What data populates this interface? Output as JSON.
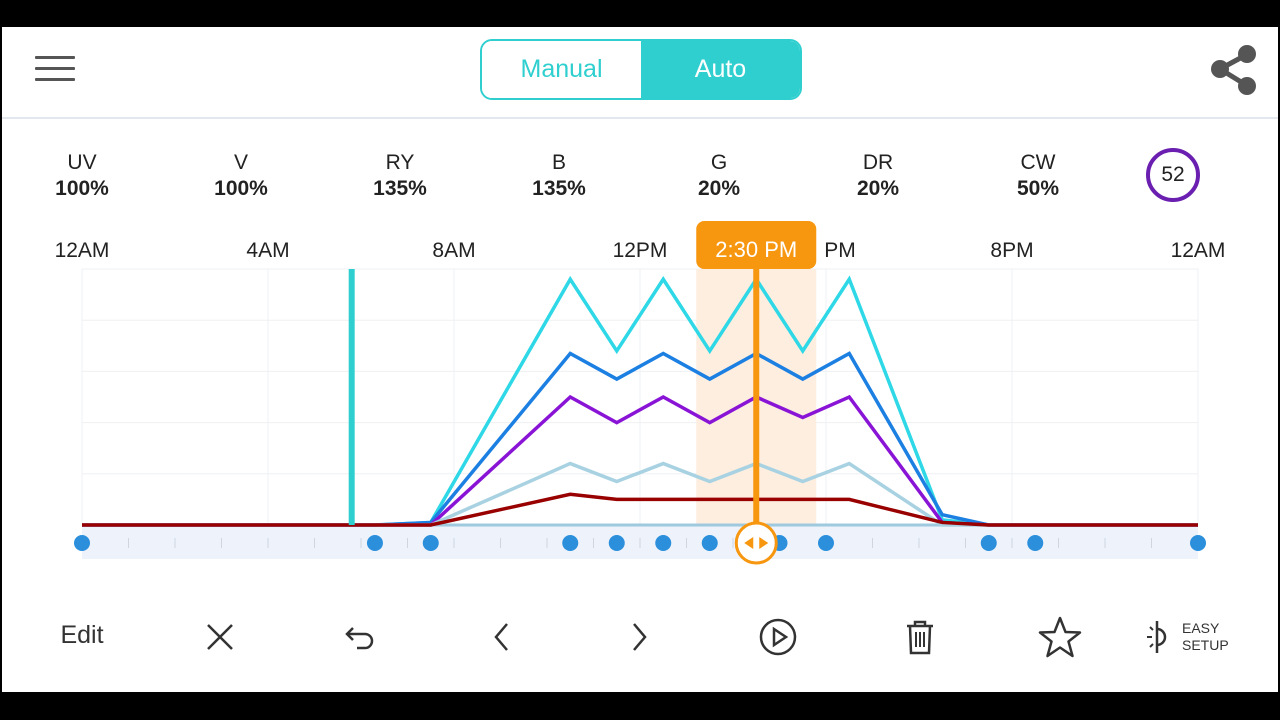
{
  "header": {
    "menu_icon": "hamburger-menu-icon",
    "mode": {
      "manual_label": "Manual",
      "auto_label": "Auto",
      "selected": "Auto"
    },
    "share_icon": "share-icon",
    "accent_color": "#2fcfcf"
  },
  "channels": [
    {
      "name": "UV",
      "value": "100%"
    },
    {
      "name": "V",
      "value": "100%"
    },
    {
      "name": "RY",
      "value": "135%"
    },
    {
      "name": "B",
      "value": "135%"
    },
    {
      "name": "G",
      "value": "20%"
    },
    {
      "name": "DR",
      "value": "20%"
    },
    {
      "name": "CW",
      "value": "50%"
    }
  ],
  "badge": {
    "value": "52",
    "color": "#6a1fb0"
  },
  "timeline": {
    "time_labels": [
      "12AM",
      "4AM",
      "8AM",
      "12PM",
      "PM",
      "8PM",
      "12AM"
    ],
    "cursor_label": "2:30 PM",
    "cursor_hour": 14.5,
    "current_time_hour": 5.8,
    "cursor_color": "#f7960f",
    "now_color": "#2fcfcf"
  },
  "chart_data": {
    "type": "line",
    "x_unit": "hour of day",
    "xlim": [
      0,
      24
    ],
    "ylim": [
      0,
      100
    ],
    "keypoints": [
      0,
      6.3,
      7.5,
      10.5,
      11.5,
      12.5,
      13.5,
      15,
      16,
      19.5,
      20.5,
      24
    ],
    "series": [
      {
        "color": "#2ed8e6",
        "x": [
          0,
          6.3,
          7.5,
          10.5,
          11.5,
          12.5,
          13.5,
          14.5,
          15.5,
          16.5,
          18.5,
          19.5,
          24
        ],
        "y": [
          0,
          0,
          1,
          96,
          68,
          96,
          68,
          96,
          68,
          96,
          2,
          0,
          0
        ]
      },
      {
        "color": "#1c7fe2",
        "x": [
          0,
          6.3,
          7.5,
          10.5,
          11.5,
          12.5,
          13.5,
          14.5,
          15.5,
          16.5,
          18.5,
          19.5,
          24
        ],
        "y": [
          0,
          0,
          1,
          67,
          57,
          67,
          57,
          67,
          57,
          67,
          4,
          0,
          0
        ]
      },
      {
        "color": "#8a14d6",
        "x": [
          0,
          6.3,
          7.5,
          10.5,
          11.5,
          12.5,
          13.5,
          14.5,
          15.5,
          16.5,
          18.5,
          19.5,
          24
        ],
        "y": [
          0,
          0,
          0,
          50,
          40,
          50,
          40,
          50,
          42,
          50,
          1,
          0,
          0
        ]
      },
      {
        "color": "#a8d2e2",
        "x": [
          0,
          6.3,
          7.5,
          10.5,
          11.5,
          12.5,
          13.5,
          14.5,
          15.5,
          16.5,
          18.5,
          19.5,
          24
        ],
        "y": [
          0,
          0,
          0,
          24,
          17,
          24,
          17,
          24,
          17,
          24,
          0,
          0,
          0
        ]
      },
      {
        "color": "#990000",
        "x": [
          0,
          6.3,
          7.5,
          10.5,
          11.5,
          14.5,
          16.5,
          18.5,
          19.5,
          24
        ],
        "y": [
          0,
          0,
          0,
          12,
          10,
          10,
          10,
          1,
          0,
          0
        ]
      }
    ]
  },
  "toolbar": {
    "edit_label": "Edit",
    "easy_setup_line1": "EASY",
    "easy_setup_line2": "SETUP"
  }
}
